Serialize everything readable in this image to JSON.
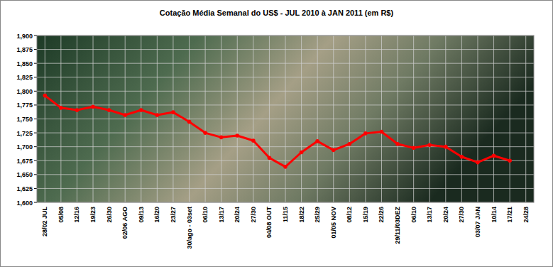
{
  "chart_data": {
    "type": "line",
    "title": "Cotação Média Semanal do US$ - JUL 2010 à JAN 2011 (em R$)",
    "categories": [
      "28/02 JUL",
      "05/08",
      "12/16",
      "19/23",
      "26/30",
      "02/06 AGO",
      "09/13",
      "16/20",
      "23/27",
      "30/ago - 03set",
      "06/10",
      "13/17",
      "20/24",
      "27/30",
      "04/08 OUT",
      "11/15",
      "18/22",
      "25/29",
      "01/05 NOV",
      "08/12",
      "15/19",
      "22/26",
      "29/11/03DEZ",
      "06/10",
      "13/17",
      "20/24",
      "27/30",
      "03/07 JAN",
      "10/14",
      "17/21",
      "24/28"
    ],
    "values": [
      1.792,
      1.77,
      1.766,
      1.772,
      1.766,
      1.757,
      1.766,
      1.757,
      1.762,
      1.745,
      1.725,
      1.717,
      1.72,
      1.711,
      1.68,
      1.664,
      1.69,
      1.71,
      1.694,
      1.705,
      1.724,
      1.727,
      1.705,
      1.698,
      1.703,
      1.7,
      1.682,
      1.672,
      1.684,
      1.675,
      null
    ],
    "color": "#ff0000",
    "marker": "circle",
    "grid": true,
    "ylim": [
      1.6,
      1.9
    ],
    "yticks": [
      {
        "value": 1.6,
        "label": "1,600"
      },
      {
        "value": 1.625,
        "label": "1,625"
      },
      {
        "value": 1.65,
        "label": "1,650"
      },
      {
        "value": 1.675,
        "label": "1,675"
      },
      {
        "value": 1.7,
        "label": "1,700"
      },
      {
        "value": 1.725,
        "label": "1,725"
      },
      {
        "value": 1.75,
        "label": "1,750"
      },
      {
        "value": 1.775,
        "label": "1,775"
      },
      {
        "value": 1.8,
        "label": "1,800"
      },
      {
        "value": 1.825,
        "label": "1,825"
      },
      {
        "value": 1.85,
        "label": "1,850"
      },
      {
        "value": 1.875,
        "label": "1,875"
      },
      {
        "value": 1.9,
        "label": "1,900"
      }
    ]
  }
}
